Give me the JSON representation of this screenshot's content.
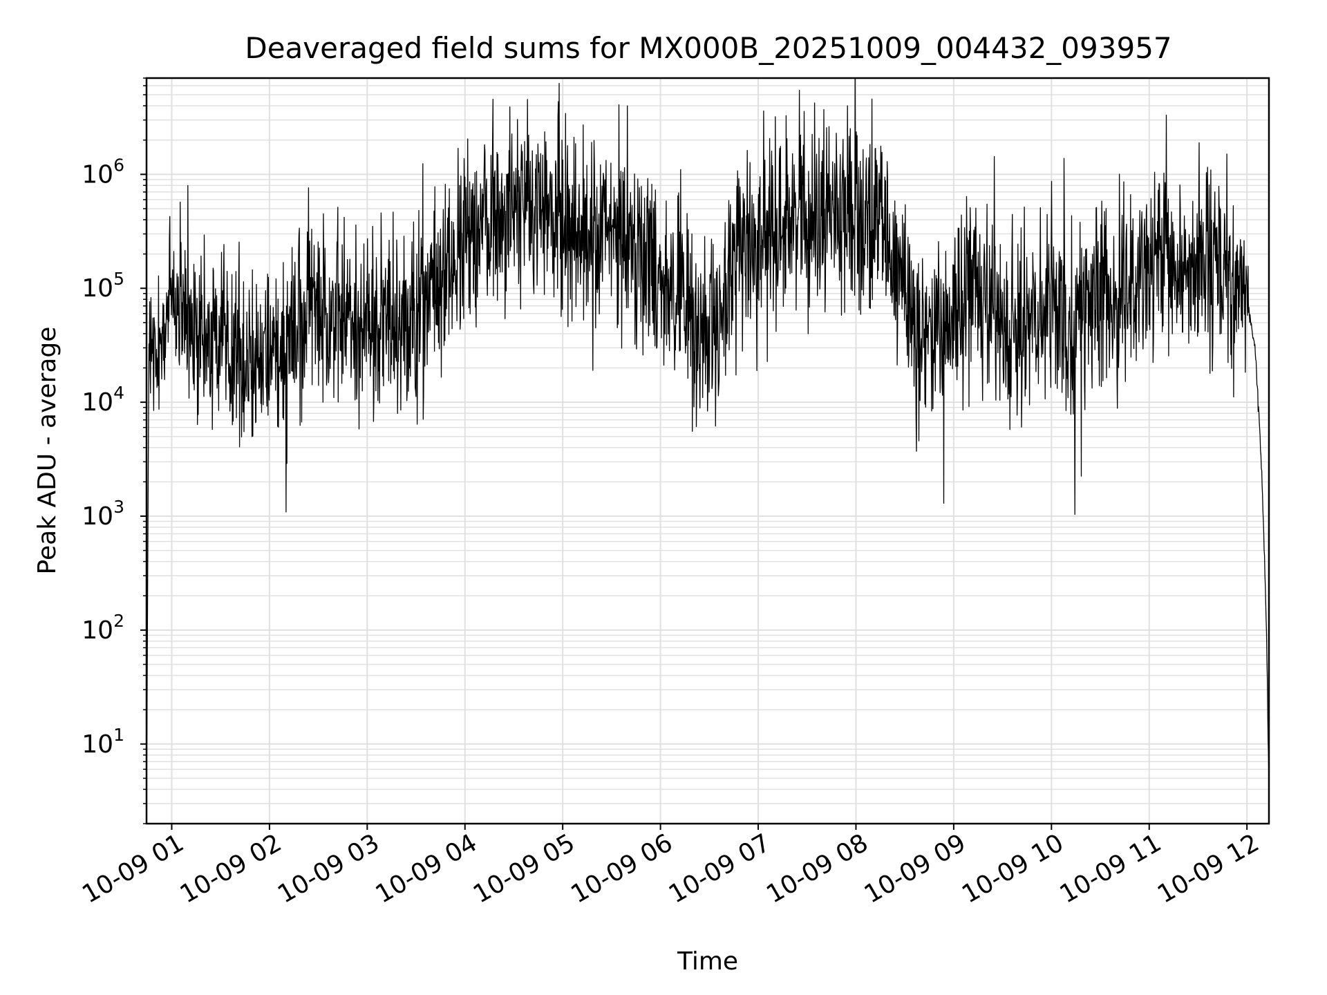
{
  "chart_data": {
    "type": "line",
    "title": "Deaveraged field sums for MX000B_20251009_004432_093957",
    "xlabel": "Time",
    "ylabel": "Peak ADU - average",
    "yscale": "log",
    "ylim": [
      2,
      7000000
    ],
    "xlim": [
      "2025-10-09 00:44:32",
      "2025-10-09 12:13:30"
    ],
    "grid": true,
    "grid_minor": true,
    "line_color": "#000000",
    "grid_color": "#e0e0e0",
    "x_ticks": [
      {
        "t": "2025-10-09 01:00",
        "label": "10-09 01"
      },
      {
        "t": "2025-10-09 02:00",
        "label": "10-09 02"
      },
      {
        "t": "2025-10-09 03:00",
        "label": "10-09 03"
      },
      {
        "t": "2025-10-09 04:00",
        "label": "10-09 04"
      },
      {
        "t": "2025-10-09 05:00",
        "label": "10-09 05"
      },
      {
        "t": "2025-10-09 06:00",
        "label": "10-09 06"
      },
      {
        "t": "2025-10-09 07:00",
        "label": "10-09 07"
      },
      {
        "t": "2025-10-09 08:00",
        "label": "10-09 08"
      },
      {
        "t": "2025-10-09 09:00",
        "label": "10-09 09"
      },
      {
        "t": "2025-10-09 10:00",
        "label": "10-09 10"
      },
      {
        "t": "2025-10-09 11:00",
        "label": "10-09 11"
      },
      {
        "t": "2025-10-09 12:00",
        "label": "10-09 12"
      }
    ],
    "y_ticks": [
      {
        "value": 10,
        "base": "10",
        "exp": "1"
      },
      {
        "value": 100,
        "base": "10",
        "exp": "2"
      },
      {
        "value": 1000,
        "base": "10",
        "exp": "3"
      },
      {
        "value": 10000,
        "base": "10",
        "exp": "4"
      },
      {
        "value": 100000,
        "base": "10",
        "exp": "5"
      },
      {
        "value": 1000000,
        "base": "10",
        "exp": "6"
      }
    ],
    "series": [
      {
        "x": [
          "2025-10-09 00:44:32",
          "2025-10-09 00:46",
          "2025-10-09 00:50",
          "2025-10-09 00:55",
          "2025-10-09 01:00",
          "2025-10-09 01:10",
          "2025-10-09 01:20",
          "2025-10-09 01:30",
          "2025-10-09 01:40",
          "2025-10-09 01:50",
          "2025-10-09 02:00",
          "2025-10-09 02:15",
          "2025-10-09 02:30",
          "2025-10-09 02:45",
          "2025-10-09 03:00",
          "2025-10-09 03:15",
          "2025-10-09 03:30",
          "2025-10-09 03:40",
          "2025-10-09 03:50",
          "2025-10-09 04:00",
          "2025-10-09 04:15",
          "2025-10-09 04:30",
          "2025-10-09 04:45",
          "2025-10-09 05:00",
          "2025-10-09 05:15",
          "2025-10-09 05:30",
          "2025-10-09 05:45",
          "2025-10-09 06:00",
          "2025-10-09 06:15",
          "2025-10-09 06:25",
          "2025-10-09 06:35",
          "2025-10-09 06:45",
          "2025-10-09 07:00",
          "2025-10-09 07:15",
          "2025-10-09 07:30",
          "2025-10-09 07:45",
          "2025-10-09 08:00",
          "2025-10-09 08:15",
          "2025-10-09 08:30",
          "2025-10-09 08:40",
          "2025-10-09 08:50",
          "2025-10-09 09:00",
          "2025-10-09 09:15",
          "2025-10-09 09:30",
          "2025-10-09 09:45",
          "2025-10-09 10:00",
          "2025-10-09 10:15",
          "2025-10-09 10:30",
          "2025-10-09 10:45",
          "2025-10-09 11:00",
          "2025-10-09 11:15",
          "2025-10-09 11:30",
          "2025-10-09 11:45",
          "2025-10-09 12:00",
          "2025-10-09 12:05",
          "2025-10-09 12:08",
          "2025-10-09 12:10",
          "2025-10-09 12:12",
          "2025-10-09 12:13:30"
        ],
        "y": [
          3,
          30000,
          15000,
          40000,
          100000,
          40000,
          30000,
          40000,
          30000,
          25000,
          30000,
          50000,
          80000,
          50000,
          50000,
          60000,
          60000,
          90000,
          150000,
          250000,
          400000,
          600000,
          500000,
          400000,
          300000,
          300000,
          250000,
          150000,
          60000,
          40000,
          30000,
          200000,
          300000,
          400000,
          500000,
          500000,
          500000,
          300000,
          100000,
          40000,
          40000,
          60000,
          70000,
          60000,
          50000,
          60000,
          60000,
          70000,
          90000,
          120000,
          150000,
          150000,
          150000,
          80000,
          30000,
          5000,
          1000,
          100,
          4
        ]
      }
    ]
  }
}
